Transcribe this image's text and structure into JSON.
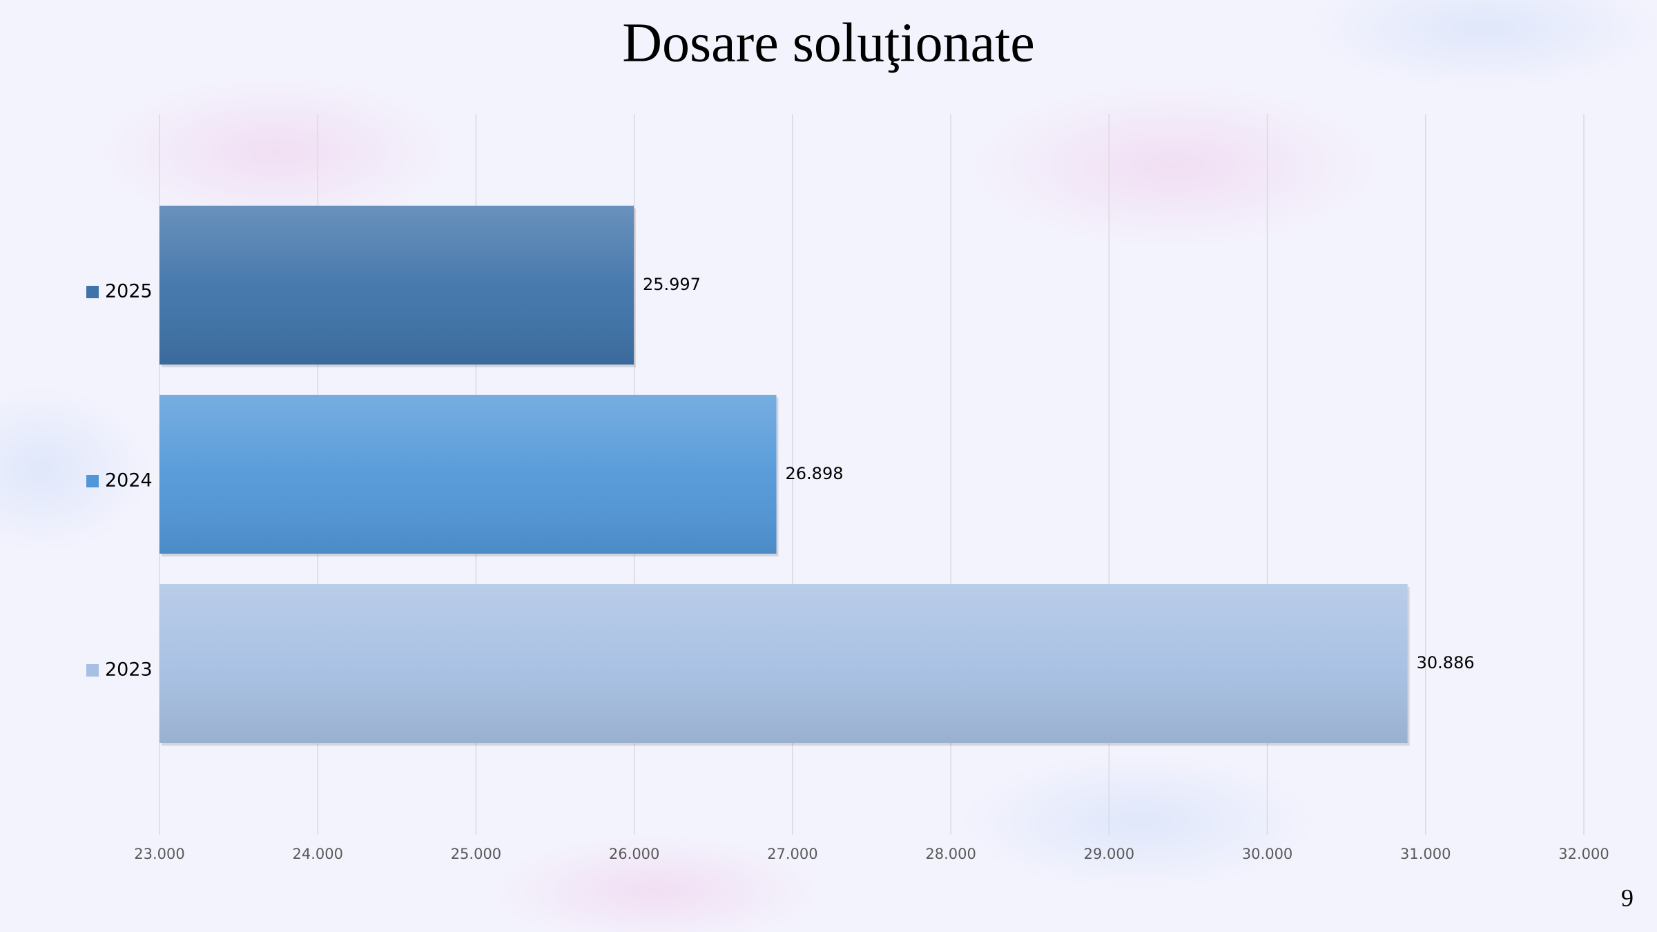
{
  "chart_data": {
    "type": "barh",
    "title": "Dosare soluţionate",
    "categories": [
      "2025",
      "2024",
      "2023"
    ],
    "values": [
      25997,
      26898,
      30886
    ],
    "value_labels": [
      "25.997",
      "26.898",
      "30.886"
    ],
    "colors": [
      "#3f73a9",
      "#5197d8",
      "#a6bfe2"
    ],
    "xlim": [
      23000,
      32000
    ],
    "xticks": [
      {
        "value": 23000,
        "label": "23.000"
      },
      {
        "value": 24000,
        "label": "24.000"
      },
      {
        "value": 25000,
        "label": "25.000"
      },
      {
        "value": 26000,
        "label": "26.000"
      },
      {
        "value": 27000,
        "label": "27.000"
      },
      {
        "value": 28000,
        "label": "28.000"
      },
      {
        "value": 29000,
        "label": "29.000"
      },
      {
        "value": 30000,
        "label": "30.000"
      },
      {
        "value": 31000,
        "label": "31.000"
      },
      {
        "value": 32000,
        "label": "32.000"
      }
    ],
    "grid": true
  },
  "slide": {
    "page_number": "9"
  }
}
